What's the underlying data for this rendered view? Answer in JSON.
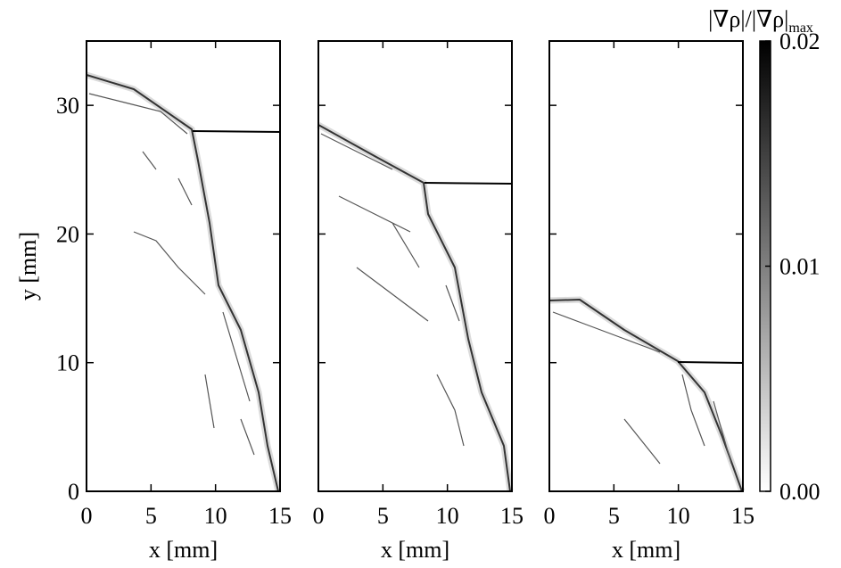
{
  "chart_data": [
    {
      "type": "image",
      "xlabel": "x [mm]",
      "ylabel": "y [mm]",
      "xlim": [
        0,
        15
      ],
      "ylim": [
        0,
        35
      ],
      "xticks": [
        0,
        5,
        10,
        15
      ],
      "yticks": [
        0,
        10,
        20,
        30
      ],
      "show_ytick_labels": true
    },
    {
      "type": "image",
      "xlabel": "x [mm]",
      "xlim": [
        0,
        15
      ],
      "ylim": [
        0,
        35
      ],
      "xticks": [
        0,
        5,
        10,
        15
      ],
      "yticks": [
        0,
        10,
        20,
        30
      ],
      "show_ytick_labels": false
    },
    {
      "type": "image",
      "xlabel": "x [mm]",
      "xlim": [
        0,
        15
      ],
      "ylim": [
        0,
        35
      ],
      "xticks": [
        0,
        5,
        10,
        15
      ],
      "yticks": [
        0,
        10,
        20,
        30
      ],
      "show_ytick_labels": false
    }
  ],
  "colorbar": {
    "label": "|∇ρ|/|∇ρ|",
    "label_subscript": "max",
    "lim": [
      0,
      0.02
    ],
    "ticks": [
      {
        "value": 0,
        "label": "0.00"
      },
      {
        "value": 0.01,
        "label": "0.01"
      },
      {
        "value": 0.02,
        "label": "0.02"
      }
    ]
  }
}
